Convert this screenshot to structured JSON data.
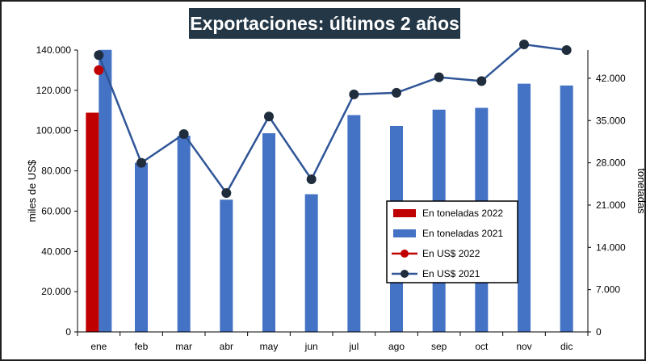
{
  "chart_data": {
    "type": "bar+line",
    "title": "Exportaciones: últimos 2 años",
    "categories": [
      "ene",
      "feb",
      "mar",
      "abr",
      "may",
      "jun",
      "jul",
      "ago",
      "sep",
      "oct",
      "nov",
      "dic"
    ],
    "y_left": {
      "label": "miles de US$",
      "range": [
        0,
        140000
      ],
      "ticks": [
        "0",
        "20.000",
        "40.000",
        "60.000",
        "80.000",
        "100.000",
        "120.000",
        "140.000"
      ],
      "tick_values": [
        0,
        20000,
        40000,
        60000,
        80000,
        100000,
        120000,
        140000
      ]
    },
    "y_right": {
      "label": "toneladas",
      "range": [
        0,
        46666.67
      ],
      "ticks": [
        "0",
        "7.000",
        "14.000",
        "21.000",
        "28.000",
        "35.000",
        "42.000"
      ],
      "tick_values": [
        0,
        7000,
        14000,
        21000,
        28000,
        35000,
        42000
      ]
    },
    "series": [
      {
        "name": "En toneladas 2022",
        "kind": "bar",
        "axis": "right",
        "color": "#c00000",
        "values": [
          36300,
          null,
          null,
          null,
          null,
          null,
          null,
          null,
          null,
          null,
          null,
          null
        ]
      },
      {
        "name": "En toneladas 2021",
        "kind": "bar",
        "axis": "right",
        "color": "#4472c4",
        "values": [
          46700,
          28000,
          32500,
          21900,
          32900,
          22800,
          35900,
          34100,
          36800,
          37100,
          41100,
          40800
        ]
      },
      {
        "name": "En US$ 2022",
        "kind": "line",
        "axis": "left",
        "color": "#c00000",
        "values": [
          130000,
          null,
          null,
          null,
          null,
          null,
          null,
          null,
          null,
          null,
          null,
          null
        ]
      },
      {
        "name": "En US$ 2021",
        "kind": "line",
        "axis": "left",
        "color": "#2f5597",
        "marker_color": "#1f2d3d",
        "values": [
          137500,
          84000,
          98300,
          69000,
          107000,
          75800,
          118000,
          118800,
          126500,
          124600,
          142800,
          140000
        ]
      }
    ],
    "legend_position": "right-middle",
    "grid": false
  }
}
